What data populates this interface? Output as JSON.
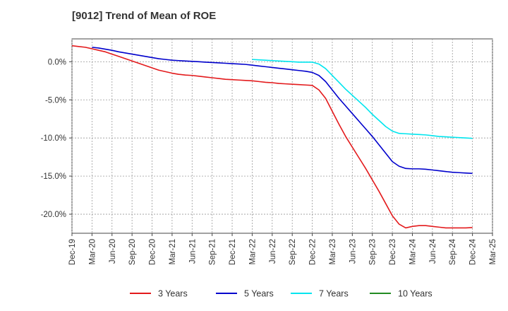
{
  "chart_data": {
    "type": "line",
    "title": "[9012]  Trend of Mean of ROE",
    "xlabel": "",
    "ylabel": "",
    "x_ticks": [
      "Dec-19",
      "Mar-20",
      "Jun-20",
      "Sep-20",
      "Dec-20",
      "Mar-21",
      "Jun-21",
      "Sep-21",
      "Dec-21",
      "Mar-22",
      "Jun-22",
      "Sep-22",
      "Dec-22",
      "Mar-23",
      "Jun-23",
      "Sep-23",
      "Dec-23",
      "Mar-24",
      "Jun-24",
      "Sep-24",
      "Dec-24",
      "Mar-25"
    ],
    "y_ticks": [
      0,
      -5,
      -10,
      -15,
      -20
    ],
    "y_tick_labels": [
      "0.0%",
      "-5.0%",
      "-10.0%",
      "-15.0%",
      "-20.0%"
    ],
    "ylim": [
      -22.5,
      3.0
    ],
    "grid": true,
    "legend_position": "bottom",
    "series": [
      {
        "name": "3 Years",
        "color": "#e31a1c",
        "points": [
          [
            "Dec-19",
            2.1
          ],
          [
            "Jan-20",
            2.0
          ],
          [
            "Feb-20",
            1.9
          ],
          [
            "Mar-20",
            1.7
          ],
          [
            "Apr-20",
            1.5
          ],
          [
            "May-20",
            1.3
          ],
          [
            "Jun-20",
            1.0
          ],
          [
            "Jul-20",
            0.7
          ],
          [
            "Aug-20",
            0.4
          ],
          [
            "Sep-20",
            0.1
          ],
          [
            "Oct-20",
            -0.2
          ],
          [
            "Nov-20",
            -0.5
          ],
          [
            "Dec-20",
            -0.8
          ],
          [
            "Jan-21",
            -1.1
          ],
          [
            "Feb-21",
            -1.3
          ],
          [
            "Mar-21",
            -1.5
          ],
          [
            "Apr-21",
            -1.65
          ],
          [
            "May-21",
            -1.75
          ],
          [
            "Jun-21",
            -1.8
          ],
          [
            "Jul-21",
            -1.9
          ],
          [
            "Aug-21",
            -2.0
          ],
          [
            "Sep-21",
            -2.1
          ],
          [
            "Oct-21",
            -2.2
          ],
          [
            "Nov-21",
            -2.3
          ],
          [
            "Dec-21",
            -2.35
          ],
          [
            "Jan-22",
            -2.4
          ],
          [
            "Feb-22",
            -2.45
          ],
          [
            "Mar-22",
            -2.5
          ],
          [
            "Apr-22",
            -2.6
          ],
          [
            "May-22",
            -2.7
          ],
          [
            "Jun-22",
            -2.75
          ],
          [
            "Jul-22",
            -2.85
          ],
          [
            "Aug-22",
            -2.9
          ],
          [
            "Sep-22",
            -2.95
          ],
          [
            "Oct-22",
            -3.0
          ],
          [
            "Nov-22",
            -3.05
          ],
          [
            "Dec-22",
            -3.1
          ],
          [
            "Jan-23",
            -3.7
          ],
          [
            "Feb-23",
            -4.8
          ],
          [
            "Mar-23",
            -6.5
          ],
          [
            "Apr-23",
            -8.2
          ],
          [
            "May-23",
            -9.8
          ],
          [
            "Jun-23",
            -11.2
          ],
          [
            "Jul-23",
            -12.6
          ],
          [
            "Aug-23",
            -14.0
          ],
          [
            "Sep-23",
            -15.5
          ],
          [
            "Oct-23",
            -17.0
          ],
          [
            "Nov-23",
            -18.6
          ],
          [
            "Dec-23",
            -20.2
          ],
          [
            "Jan-24",
            -21.3
          ],
          [
            "Feb-24",
            -21.8
          ],
          [
            "Mar-24",
            -21.6
          ],
          [
            "Apr-24",
            -21.5
          ],
          [
            "May-24",
            -21.5
          ],
          [
            "Jun-24",
            -21.6
          ],
          [
            "Jul-24",
            -21.7
          ],
          [
            "Aug-24",
            -21.8
          ],
          [
            "Sep-24",
            -21.8
          ],
          [
            "Oct-24",
            -21.8
          ],
          [
            "Nov-24",
            -21.8
          ],
          [
            "Dec-24",
            -21.75
          ]
        ]
      },
      {
        "name": "5 Years",
        "color": "#0000cc",
        "points": [
          [
            "Mar-20",
            1.9
          ],
          [
            "Apr-20",
            1.8
          ],
          [
            "May-20",
            1.65
          ],
          [
            "Jun-20",
            1.5
          ],
          [
            "Jul-20",
            1.3
          ],
          [
            "Aug-20",
            1.15
          ],
          [
            "Sep-20",
            1.0
          ],
          [
            "Oct-20",
            0.85
          ],
          [
            "Nov-20",
            0.7
          ],
          [
            "Dec-20",
            0.55
          ],
          [
            "Jan-21",
            0.4
          ],
          [
            "Feb-21",
            0.3
          ],
          [
            "Mar-21",
            0.2
          ],
          [
            "Apr-21",
            0.15
          ],
          [
            "May-21",
            0.1
          ],
          [
            "Jun-21",
            0.05
          ],
          [
            "Jul-21",
            0.0
          ],
          [
            "Aug-21",
            -0.05
          ],
          [
            "Sep-21",
            -0.1
          ],
          [
            "Oct-21",
            -0.15
          ],
          [
            "Nov-21",
            -0.2
          ],
          [
            "Dec-21",
            -0.25
          ],
          [
            "Jan-22",
            -0.3
          ],
          [
            "Feb-22",
            -0.35
          ],
          [
            "Mar-22",
            -0.45
          ],
          [
            "Apr-22",
            -0.55
          ],
          [
            "May-22",
            -0.65
          ],
          [
            "Jun-22",
            -0.75
          ],
          [
            "Jul-22",
            -0.85
          ],
          [
            "Aug-22",
            -0.95
          ],
          [
            "Sep-22",
            -1.05
          ],
          [
            "Oct-22",
            -1.15
          ],
          [
            "Nov-22",
            -1.25
          ],
          [
            "Dec-22",
            -1.4
          ],
          [
            "Jan-23",
            -1.8
          ],
          [
            "Feb-23",
            -2.6
          ],
          [
            "Mar-23",
            -3.7
          ],
          [
            "Apr-23",
            -4.8
          ],
          [
            "May-23",
            -5.8
          ],
          [
            "Jun-23",
            -6.8
          ],
          [
            "Jul-23",
            -7.8
          ],
          [
            "Aug-23",
            -8.8
          ],
          [
            "Sep-23",
            -9.8
          ],
          [
            "Oct-23",
            -10.9
          ],
          [
            "Nov-23",
            -12.0
          ],
          [
            "Dec-23",
            -13.1
          ],
          [
            "Jan-24",
            -13.7
          ],
          [
            "Feb-24",
            -14.0
          ],
          [
            "Mar-24",
            -14.05
          ],
          [
            "Apr-24",
            -14.05
          ],
          [
            "May-24",
            -14.1
          ],
          [
            "Jun-24",
            -14.2
          ],
          [
            "Jul-24",
            -14.3
          ],
          [
            "Aug-24",
            -14.4
          ],
          [
            "Sep-24",
            -14.5
          ],
          [
            "Oct-24",
            -14.55
          ],
          [
            "Nov-24",
            -14.6
          ],
          [
            "Dec-24",
            -14.65
          ]
        ]
      },
      {
        "name": "7 Years",
        "color": "#00e5ee",
        "points": [
          [
            "Mar-22",
            0.3
          ],
          [
            "Apr-22",
            0.25
          ],
          [
            "May-22",
            0.2
          ],
          [
            "Jun-22",
            0.15
          ],
          [
            "Jul-22",
            0.1
          ],
          [
            "Aug-22",
            0.05
          ],
          [
            "Sep-22",
            0.0
          ],
          [
            "Oct-22",
            -0.05
          ],
          [
            "Nov-22",
            -0.05
          ],
          [
            "Dec-22",
            -0.05
          ],
          [
            "Jan-23",
            -0.3
          ],
          [
            "Feb-23",
            -0.9
          ],
          [
            "Mar-23",
            -1.8
          ],
          [
            "Apr-23",
            -2.7
          ],
          [
            "May-23",
            -3.6
          ],
          [
            "Jun-23",
            -4.4
          ],
          [
            "Jul-23",
            -5.2
          ],
          [
            "Aug-23",
            -6.0
          ],
          [
            "Sep-23",
            -6.9
          ],
          [
            "Oct-23",
            -7.7
          ],
          [
            "Nov-23",
            -8.5
          ],
          [
            "Dec-23",
            -9.1
          ],
          [
            "Jan-24",
            -9.4
          ],
          [
            "Feb-24",
            -9.45
          ],
          [
            "Mar-24",
            -9.5
          ],
          [
            "Apr-24",
            -9.55
          ],
          [
            "May-24",
            -9.6
          ],
          [
            "Jun-24",
            -9.7
          ],
          [
            "Jul-24",
            -9.8
          ],
          [
            "Aug-24",
            -9.85
          ],
          [
            "Sep-24",
            -9.9
          ],
          [
            "Oct-24",
            -9.95
          ],
          [
            "Nov-24",
            -10.0
          ],
          [
            "Dec-24",
            -10.05
          ]
        ]
      },
      {
        "name": "10 Years",
        "color": "#228b22",
        "points": []
      }
    ]
  }
}
